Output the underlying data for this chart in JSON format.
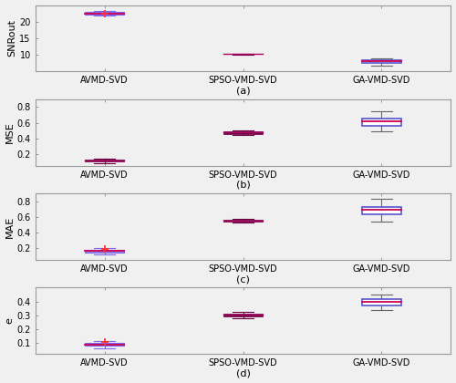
{
  "subplots": [
    {
      "label": "(a)",
      "ylabel": "SNRout",
      "ylim": [
        5,
        25
      ],
      "yticks": [
        10,
        15,
        20
      ],
      "boxes": [
        {
          "name": "AVMD-SVD",
          "q1": 22.1,
          "median": 22.5,
          "q3": 22.85,
          "whislo": 21.8,
          "whishi": 23.3,
          "mean": 22.3,
          "box_color": "#7B68EE",
          "median_color": "#CC0055",
          "whisker_color": "#7B68EE",
          "flier_color": "#FF3333",
          "has_mean": true,
          "style": "filled_purple"
        },
        {
          "name": "SPSO-VMD-SVD",
          "q1": 10.22,
          "median": 10.28,
          "q3": 10.33,
          "whislo": 10.1,
          "whishi": 10.42,
          "mean": null,
          "box_color": "#6B0040",
          "median_color": "#6B0040",
          "whisker_color": "#6B0040",
          "flier_color": "#FF3333",
          "has_mean": false,
          "style": "dark_filled"
        },
        {
          "name": "GA-VMD-SVD",
          "q1": 7.7,
          "median": 8.05,
          "q3": 8.45,
          "whislo": 6.8,
          "whishi": 8.85,
          "mean": null,
          "box_color": "#5555CC",
          "median_color": "#CC0055",
          "whisker_color": "#666666",
          "flier_color": "#FF3333",
          "has_mean": false,
          "style": "blue_outline"
        }
      ]
    },
    {
      "label": "(b)",
      "ylabel": "MSE",
      "ylim": [
        0.05,
        0.9
      ],
      "yticks": [
        0.2,
        0.4,
        0.6,
        0.8
      ],
      "boxes": [
        {
          "name": "AVMD-SVD",
          "q1": 0.1,
          "median": 0.112,
          "q3": 0.122,
          "whislo": 0.082,
          "whishi": 0.14,
          "mean": null,
          "box_color": "#6B0040",
          "median_color": "#6B0040",
          "whisker_color": "#6B0040",
          "flier_color": "#FF3333",
          "has_mean": false,
          "style": "dark_filled"
        },
        {
          "name": "SPSO-VMD-SVD",
          "q1": 0.46,
          "median": 0.473,
          "q3": 0.484,
          "whislo": 0.442,
          "whishi": 0.5,
          "mean": null,
          "box_color": "#6B0040",
          "median_color": "#6B0040",
          "whisker_color": "#6B0040",
          "flier_color": "#FF3333",
          "has_mean": false,
          "style": "dark_filled"
        },
        {
          "name": "GA-VMD-SVD",
          "q1": 0.565,
          "median": 0.615,
          "q3": 0.648,
          "whislo": 0.495,
          "whishi": 0.745,
          "mean": null,
          "box_color": "#5555CC",
          "median_color": "#CC0055",
          "whisker_color": "#666666",
          "flier_color": "#FF3333",
          "has_mean": false,
          "style": "blue_outline"
        }
      ]
    },
    {
      "label": "(c)",
      "ylabel": "MAE",
      "ylim": [
        0.05,
        0.9
      ],
      "yticks": [
        0.2,
        0.4,
        0.6,
        0.8
      ],
      "boxes": [
        {
          "name": "AVMD-SVD",
          "q1": 0.148,
          "median": 0.162,
          "q3": 0.178,
          "whislo": 0.125,
          "whishi": 0.205,
          "mean": 0.19,
          "box_color": "#7B68EE",
          "median_color": "#CC0055",
          "whisker_color": "#7B68EE",
          "flier_color": "#FF3333",
          "has_mean": true,
          "style": "filled_purple"
        },
        {
          "name": "SPSO-VMD-SVD",
          "q1": 0.542,
          "median": 0.555,
          "q3": 0.565,
          "whislo": 0.525,
          "whishi": 0.578,
          "mean": null,
          "box_color": "#6B0040",
          "median_color": "#6B0040",
          "whisker_color": "#6B0040",
          "flier_color": "#FF3333",
          "has_mean": false,
          "style": "dark_filled"
        },
        {
          "name": "GA-VMD-SVD",
          "q1": 0.638,
          "median": 0.695,
          "q3": 0.728,
          "whislo": 0.545,
          "whishi": 0.828,
          "mean": null,
          "box_color": "#5555CC",
          "median_color": "#CC0055",
          "whisker_color": "#666666",
          "flier_color": "#FF3333",
          "has_mean": false,
          "style": "blue_outline"
        }
      ]
    },
    {
      "label": "(d)",
      "ylabel": "e",
      "ylim": [
        0.02,
        0.5
      ],
      "yticks": [
        0.1,
        0.2,
        0.3,
        0.4
      ],
      "boxes": [
        {
          "name": "AVMD-SVD",
          "q1": 0.078,
          "median": 0.088,
          "q3": 0.098,
          "whislo": 0.062,
          "whishi": 0.112,
          "mean": 0.105,
          "box_color": "#7B68EE",
          "median_color": "#CC0055",
          "whisker_color": "#7B68EE",
          "flier_color": "#FF3333",
          "has_mean": true,
          "style": "filled_purple"
        },
        {
          "name": "SPSO-VMD-SVD",
          "q1": 0.293,
          "median": 0.302,
          "q3": 0.312,
          "whislo": 0.278,
          "whishi": 0.322,
          "mean": null,
          "box_color": "#6B0040",
          "median_color": "#6B0040",
          "whisker_color": "#6B0040",
          "flier_color": "#FF3333",
          "has_mean": false,
          "style": "dark_filled"
        },
        {
          "name": "GA-VMD-SVD",
          "q1": 0.372,
          "median": 0.398,
          "q3": 0.415,
          "whislo": 0.335,
          "whishi": 0.452,
          "mean": null,
          "box_color": "#5555CC",
          "median_color": "#CC0055",
          "whisker_color": "#666666",
          "flier_color": "#FF3333",
          "has_mean": false,
          "style": "blue_outline"
        }
      ]
    }
  ],
  "bg_color": "#F0F0F0",
  "box_width": 0.28,
  "positions": [
    1,
    2,
    3
  ],
  "xtick_labels": [
    "AVMD-SVD",
    "SPSO-VMD-SVD",
    "GA-VMD-SVD"
  ]
}
